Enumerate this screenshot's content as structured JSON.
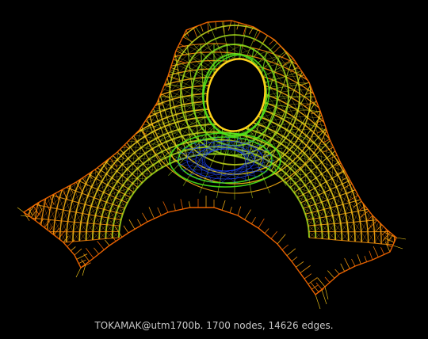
{
  "caption": "TOKAMAK@utm1700b. 1700 nodes, 14626 edges.",
  "graph": {
    "name": "TOKAMAK@utm1700b",
    "nodes": 1700,
    "edges": 14626
  },
  "colors": {
    "background": "#000000",
    "edge_outer": "#ff6a00",
    "edge_mid": "#ffd21a",
    "edge_inner": "#48e81c",
    "edge_core": "#1e46ff",
    "caption": "#c8c8c8"
  }
}
